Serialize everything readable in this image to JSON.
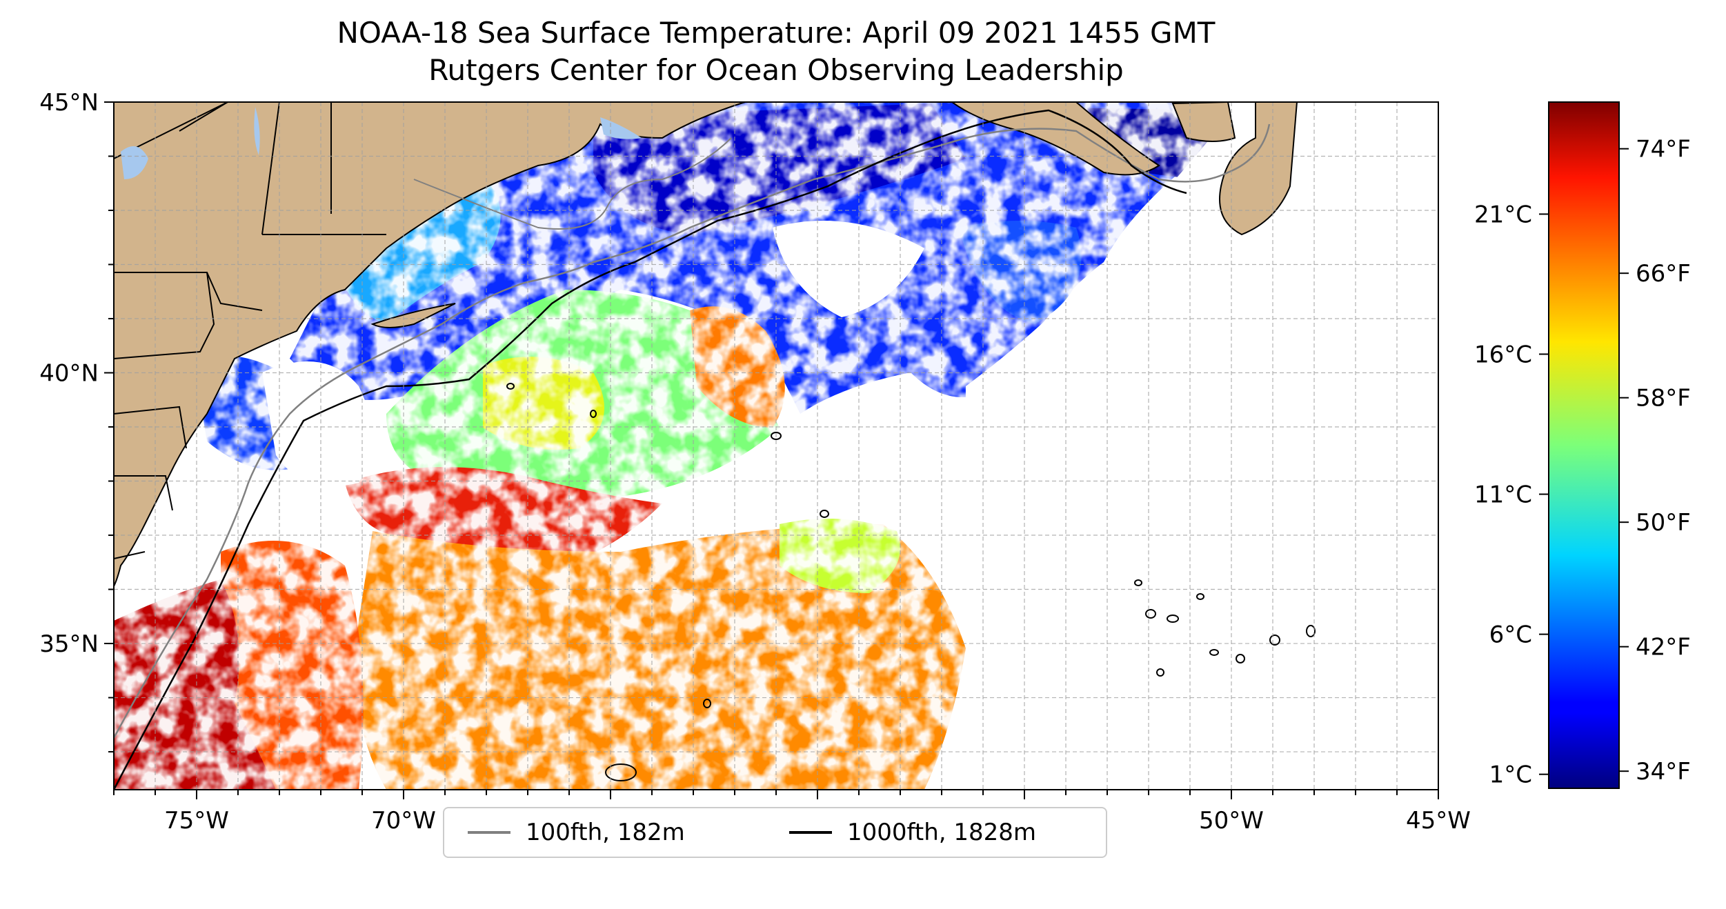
{
  "title": "NOAA-18 Sea Surface Temperature: April 09 2021 1455 GMT",
  "subtitle": "Rutgers Center for Ocean Observing Leadership",
  "map": {
    "lon_range": [
      -77,
      -45
    ],
    "lat_range": [
      32.3,
      45
    ],
    "lon_ticks": [
      {
        "value": -75,
        "label": "75°W"
      },
      {
        "value": -70,
        "label": "70°W"
      },
      {
        "value": -65,
        "label": "65°W"
      },
      {
        "value": -60,
        "label": "60°W"
      },
      {
        "value": -55,
        "label": "55°W"
      },
      {
        "value": -50,
        "label": "50°W"
      },
      {
        "value": -45,
        "label": "45°W"
      }
    ],
    "lat_ticks": [
      {
        "value": 45,
        "label": "45°N"
      },
      {
        "value": 40,
        "label": "40°N"
      },
      {
        "value": 35,
        "label": "35°N"
      }
    ],
    "grid": "dashed, every 1 degree",
    "colors": {
      "land": "#d2b48c",
      "water_bodies": "#a6c8ee",
      "no_data": "#ffffff",
      "isobath_100": "#808080",
      "isobath_1000": "#000000"
    }
  },
  "colorbar": {
    "colormap": "jet",
    "range_c": [
      0.5,
      25
    ],
    "celsius_ticks": [
      {
        "value": 1,
        "label": "1°C"
      },
      {
        "value": 6,
        "label": "6°C"
      },
      {
        "value": 11,
        "label": "11°C"
      },
      {
        "value": 16,
        "label": "16°C"
      },
      {
        "value": 21,
        "label": "21°C"
      }
    ],
    "fahrenheit_ticks": [
      {
        "value": 34,
        "label": "34°F"
      },
      {
        "value": 42,
        "label": "42°F"
      },
      {
        "value": 50,
        "label": "50°F"
      },
      {
        "value": 58,
        "label": "58°F"
      },
      {
        "value": 66,
        "label": "66°F"
      },
      {
        "value": 74,
        "label": "74°F"
      }
    ]
  },
  "legend": {
    "items": [
      {
        "label": "100fth, 182m",
        "color": "#808080"
      },
      {
        "label": "1000fth, 1828m",
        "color": "#000000"
      }
    ],
    "location": "bottom-center"
  }
}
